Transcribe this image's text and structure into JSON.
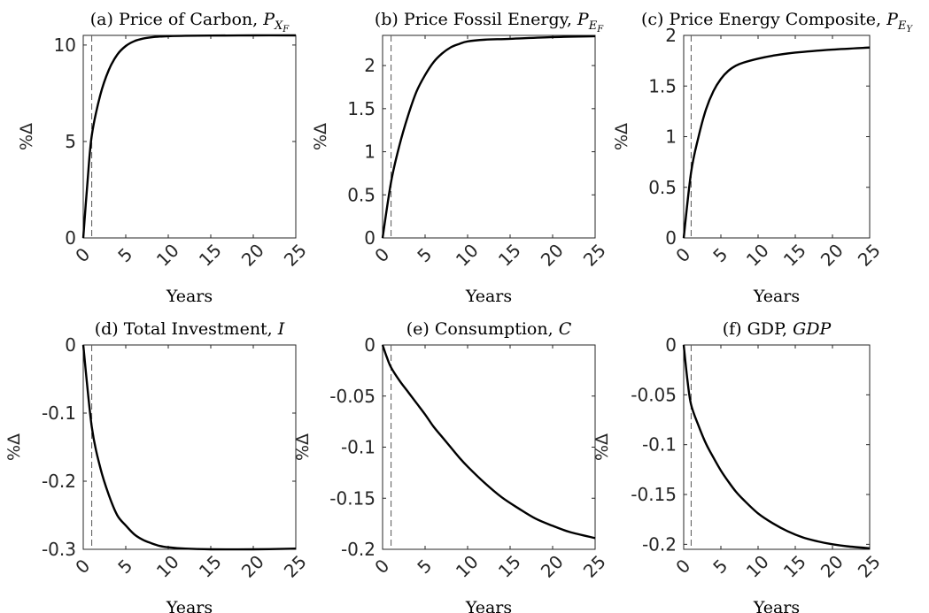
{
  "chart_data": [
    {
      "panel": "a",
      "type": "line",
      "title": "(a) Price of Carbon, ",
      "title_math": "P",
      "title_sub": "X",
      "title_subsub": "F",
      "xlabel": "Years",
      "ylabel": "%Δ",
      "xlim": [
        0,
        25
      ],
      "ylim": [
        0,
        10.5
      ],
      "xticks": [
        "0",
        "5",
        "10",
        "15",
        "20",
        "25"
      ],
      "yticks": [
        0,
        5,
        10
      ],
      "yticklabels": [
        "0",
        "5",
        "10"
      ],
      "marker_x": 1,
      "x": [
        0,
        0.5,
        1,
        2,
        3,
        4,
        5,
        6,
        7,
        8,
        9,
        10,
        12,
        15,
        20,
        25
      ],
      "y": [
        0,
        2.9,
        5.3,
        7.4,
        8.7,
        9.5,
        9.95,
        10.2,
        10.33,
        10.4,
        10.44,
        10.46,
        10.48,
        10.49,
        10.5,
        10.5
      ]
    },
    {
      "panel": "b",
      "type": "line",
      "title": "(b) Price Fossil Energy, ",
      "title_math": "P",
      "title_sub": "E",
      "title_subsub": "F",
      "xlabel": "Years",
      "ylabel": "%Δ",
      "xlim": [
        0,
        25
      ],
      "ylim": [
        0,
        2.35
      ],
      "xticks": [
        "0",
        "5",
        "10",
        "15",
        "20",
        "25"
      ],
      "yticks": [
        0,
        0.5,
        1,
        1.5,
        2
      ],
      "yticklabels": [
        "0",
        "0.5",
        "1",
        "1.5",
        "2"
      ],
      "marker_x": 1,
      "x": [
        0,
        1,
        2,
        3,
        4,
        5,
        6,
        7,
        8,
        9,
        10,
        12,
        15,
        20,
        25
      ],
      "y": [
        0,
        0.65,
        1.08,
        1.42,
        1.7,
        1.89,
        2.04,
        2.14,
        2.21,
        2.25,
        2.28,
        2.3,
        2.31,
        2.33,
        2.34
      ]
    },
    {
      "panel": "c",
      "type": "line",
      "title": "(c) Price Energy Composite, ",
      "title_math": "P",
      "title_sub": "E",
      "title_subsub": "Y",
      "xlabel": "Years",
      "ylabel": "%Δ",
      "xlim": [
        0,
        25
      ],
      "ylim": [
        0,
        2
      ],
      "xticks": [
        "0",
        "5",
        "10",
        "15",
        "20",
        "25"
      ],
      "yticks": [
        0,
        0.5,
        1,
        1.5,
        2
      ],
      "yticklabels": [
        "0",
        "0.5",
        "1",
        "1.5",
        "2"
      ],
      "marker_x": 1,
      "x": [
        0,
        1,
        2,
        3,
        4,
        5,
        6,
        7,
        8,
        10,
        12,
        15,
        20,
        25
      ],
      "y": [
        0,
        0.65,
        1.0,
        1.27,
        1.45,
        1.57,
        1.65,
        1.7,
        1.73,
        1.77,
        1.8,
        1.83,
        1.86,
        1.88
      ]
    },
    {
      "panel": "d",
      "type": "line",
      "title": "(d) Total Investment, ",
      "title_math": "I",
      "title_sub": "",
      "title_subsub": "",
      "xlabel": "Years",
      "ylabel": "%Δ",
      "xlim": [
        0,
        25
      ],
      "ylim": [
        -0.3,
        0
      ],
      "xticks": [
        "0",
        "5",
        "10",
        "15",
        "20",
        "25"
      ],
      "yticks": [
        -0.3,
        -0.2,
        -0.1,
        0
      ],
      "yticklabels": [
        "-0.3",
        "-0.2",
        "-0.1",
        "0"
      ],
      "marker_x": 1,
      "x": [
        0,
        1,
        2,
        3,
        4,
        5,
        6,
        7,
        8,
        9,
        10,
        12,
        15,
        20,
        25
      ],
      "y": [
        0,
        -0.12,
        -0.18,
        -0.22,
        -0.25,
        -0.265,
        -0.278,
        -0.286,
        -0.291,
        -0.295,
        -0.297,
        -0.299,
        -0.3,
        -0.3,
        -0.299
      ]
    },
    {
      "panel": "e",
      "type": "line",
      "title": "(e) Consumption, ",
      "title_math": "C",
      "title_sub": "",
      "title_subsub": "",
      "xlabel": "Years",
      "ylabel": "%Δ",
      "xlim": [
        0,
        25
      ],
      "ylim": [
        -0.2,
        0
      ],
      "xticks": [
        "0",
        "5",
        "10",
        "15",
        "20",
        "25"
      ],
      "yticks": [
        -0.2,
        -0.15,
        -0.1,
        -0.05,
        0
      ],
      "yticklabels": [
        "-0.2",
        "-0.15",
        "-0.1",
        "-0.05",
        "0"
      ],
      "marker_x": 1,
      "x": [
        0,
        0.5,
        1,
        2,
        3,
        4,
        5,
        6,
        7,
        8,
        9,
        10,
        12,
        14,
        16,
        18,
        20,
        22,
        25
      ],
      "y": [
        0,
        -0.012,
        -0.022,
        -0.035,
        -0.046,
        -0.057,
        -0.068,
        -0.08,
        -0.09,
        -0.1,
        -0.11,
        -0.119,
        -0.135,
        -0.149,
        -0.16,
        -0.17,
        -0.177,
        -0.183,
        -0.189
      ]
    },
    {
      "panel": "f",
      "type": "line",
      "title": "(f) GDP, ",
      "title_math": "GDP",
      "title_sub": "",
      "title_subsub": "",
      "xlabel": "Years",
      "ylabel": "%Δ",
      "xlim": [
        0,
        25
      ],
      "ylim": [
        -0.205,
        0
      ],
      "xticks": [
        "0",
        "5",
        "10",
        "15",
        "20",
        "25"
      ],
      "yticks": [
        -0.2,
        -0.15,
        -0.1,
        -0.05,
        0
      ],
      "yticklabels": [
        "-0.2",
        "-0.15",
        "-0.1",
        "-0.05",
        "0"
      ],
      "marker_x": 1,
      "x": [
        0,
        0.5,
        1,
        2,
        3,
        4,
        5,
        6,
        7,
        8,
        10,
        12,
        14,
        16,
        18,
        20,
        22,
        25
      ],
      "y": [
        0,
        -0.035,
        -0.06,
        -0.081,
        -0.099,
        -0.113,
        -0.126,
        -0.137,
        -0.147,
        -0.155,
        -0.169,
        -0.179,
        -0.187,
        -0.193,
        -0.197,
        -0.2,
        -0.202,
        -0.204
      ]
    }
  ],
  "colors": {
    "line": "#000000",
    "axis": "#262626",
    "marker": "#555555"
  }
}
